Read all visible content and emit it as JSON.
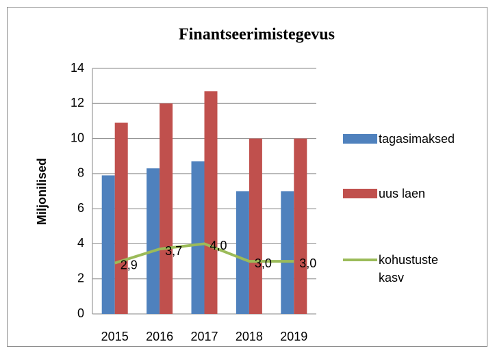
{
  "chart_data": {
    "type": "bar",
    "title": "Finantseerimistegevus",
    "y_label": "Miljonilised",
    "categories": [
      "2015",
      "2016",
      "2017",
      "2018",
      "2019"
    ],
    "series": [
      {
        "name": "tagasimaksed",
        "color": "#4f81bd",
        "values": [
          7.9,
          8.3,
          8.7,
          7.0,
          7.0
        ]
      },
      {
        "name": "uus laen",
        "color": "#c0504d",
        "values": [
          10.9,
          12.0,
          12.7,
          10.0,
          10.0
        ]
      },
      {
        "name": "kohustuste kasv",
        "color": "#9bbb59",
        "type": "line",
        "values": [
          2.9,
          3.7,
          4.0,
          3.0,
          3.0
        ],
        "value_labels": [
          "2,9",
          "3,7",
          "4,0",
          "3,0",
          "3,0"
        ]
      }
    ],
    "ylim": [
      0,
      14
    ],
    "yticks": [
      0,
      2,
      4,
      6,
      8,
      10,
      12,
      14
    ],
    "grid": true,
    "legend": "right"
  }
}
